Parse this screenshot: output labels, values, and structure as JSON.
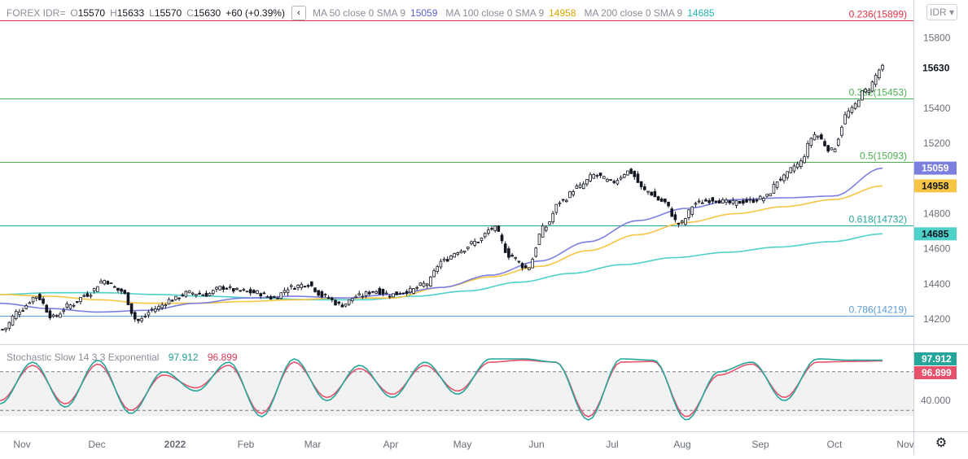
{
  "header": {
    "symbol": "FOREX IDR=",
    "o_label": "O",
    "o_value": "15570",
    "h_label": "H",
    "h_value": "15633",
    "l_label": "L",
    "l_value": "15570",
    "c_label": "C",
    "c_value": "15630",
    "change": "+60 (+0.39%)",
    "collapse_icon": "‹",
    "ma50_label": "MA 50 close 0 SMA 9",
    "ma50_value": "15059",
    "ma100_label": "MA 100 close 0 SMA 9",
    "ma100_value": "14958",
    "ma200_label": "MA 200 close 0 SMA 9",
    "ma200_value": "14685"
  },
  "currency_selector": "IDR ▾",
  "settings_icon": "⚙",
  "stochastic": {
    "label": "Stochastic Slow 14 3 3 Exponential",
    "k_value": "97.912",
    "d_value": "96.899",
    "axis_label": "40.000",
    "upper_level": 80,
    "lower_level": 20
  },
  "colors": {
    "ma50": "#7b7fe0",
    "ma100": "#f7c544",
    "ma200": "#4ed1c9",
    "fib_red": "#e03346",
    "fib_green": "#4caf50",
    "fib_teal": "#26a69a",
    "fib_blue": "#5b9bd5",
    "stoch_k": "#26a69a",
    "stoch_d": "#e6516c"
  },
  "chart_data": {
    "type": "candlestick",
    "title": "FOREX IDR=",
    "x_tick_labels": [
      "Nov",
      "Dec",
      "2022",
      "Feb",
      "Mar",
      "Apr",
      "May",
      "Jun",
      "Jul",
      "Aug",
      "Sep",
      "Oct",
      "Nov"
    ],
    "y_tick_labels": [
      "15800",
      "15400",
      "15200",
      "14800",
      "14600",
      "14400",
      "14200"
    ],
    "y_range": [
      14080,
      15960
    ],
    "last_price_label": "15630",
    "price_badges": [
      {
        "label": "15059",
        "color": "#7b7fe0",
        "text": "#ffffff"
      },
      {
        "label": "14958",
        "color": "#f7c544",
        "text": "#131722"
      },
      {
        "label": "14685",
        "color": "#4ed1c9",
        "text": "#131722"
      }
    ],
    "fib_levels": [
      {
        "ratio": "0.236",
        "value": 15899,
        "label": "0.236(15899)",
        "color": "#e03346"
      },
      {
        "ratio": "0.382",
        "value": 15453,
        "label": "0.382(15453)",
        "color": "#4caf50"
      },
      {
        "ratio": "0.5",
        "value": 15093,
        "label": "0.5(15093)",
        "color": "#4caf50"
      },
      {
        "ratio": "0.618",
        "value": 14732,
        "label": "0.618(14732)",
        "color": "#26a69a"
      },
      {
        "ratio": "0.786",
        "value": 14219,
        "label": "0.786(14219)",
        "color": "#5b9bd5"
      }
    ],
    "close_anchors": [
      14140,
      14250,
      14330,
      14210,
      14280,
      14340,
      14420,
      14360,
      14190,
      14260,
      14310,
      14350,
      14340,
      14380,
      14360,
      14350,
      14320,
      14380,
      14400,
      14330,
      14280,
      14330,
      14360,
      14340,
      14360,
      14400,
      14530,
      14590,
      14640,
      14720,
      14560,
      14490,
      14720,
      14870,
      14950,
      15020,
      14980,
      15040,
      14930,
      14870,
      14740,
      14860,
      14880,
      14860,
      14870,
      14890,
      15000,
      15080,
      15250,
      15160,
      15380,
      15500,
      15630
    ],
    "ma50_anchors": [
      14290,
      14260,
      14240,
      14250,
      14290,
      14320,
      14330,
      14320,
      14340,
      14380,
      14450,
      14530,
      14640,
      14760,
      14830,
      14880,
      14890,
      14900,
      15059
    ],
    "ma100_anchors": [
      14340,
      14330,
      14310,
      14290,
      14290,
      14300,
      14310,
      14320,
      14320,
      14380,
      14440,
      14500,
      14590,
      14680,
      14750,
      14800,
      14840,
      14880,
      14958
    ],
    "ma200_anchors": [
      14340,
      14350,
      14350,
      14340,
      14330,
      14320,
      14310,
      14310,
      14330,
      14360,
      14410,
      14460,
      14510,
      14550,
      14580,
      14610,
      14640,
      14685
    ],
    "stoch_k_anchors": [
      30,
      95,
      25,
      98,
      15,
      80,
      50,
      95,
      10,
      100,
      35,
      90,
      40,
      95,
      45,
      100,
      100,
      95,
      5,
      100,
      98,
      5,
      80,
      95,
      35,
      100,
      98,
      97.912
    ],
    "stoch_d_anchors": [
      35,
      90,
      30,
      92,
      20,
      75,
      55,
      90,
      15,
      95,
      40,
      85,
      45,
      90,
      50,
      95,
      98,
      95,
      10,
      95,
      96,
      10,
      75,
      92,
      40,
      95,
      96,
      96.899
    ]
  }
}
